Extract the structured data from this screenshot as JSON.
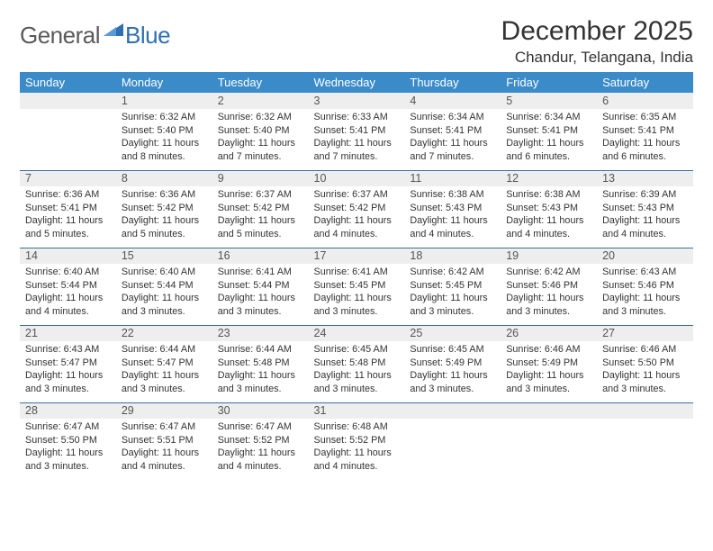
{
  "logo": {
    "part1": "General",
    "part2": "Blue"
  },
  "title": "December 2025",
  "location": "Chandur, Telangana, India",
  "colors": {
    "header_bg": "#3b8bc9",
    "header_text": "#ffffff",
    "daynum_bg": "#eeeeee",
    "row_divider": "#3b6fa0",
    "logo_gray": "#5a5a5a",
    "logo_blue": "#2f6fb3",
    "body_text": "#333333",
    "background": "#ffffff"
  },
  "typography": {
    "title_fontsize": 30,
    "location_fontsize": 17,
    "dayheader_fontsize": 13,
    "daynum_fontsize": 12.5,
    "cell_fontsize": 10.8
  },
  "day_headers": [
    "Sunday",
    "Monday",
    "Tuesday",
    "Wednesday",
    "Thursday",
    "Friday",
    "Saturday"
  ],
  "weeks": [
    [
      null,
      {
        "n": "1",
        "sr": "Sunrise: 6:32 AM",
        "ss": "Sunset: 5:40 PM",
        "dl": "Daylight: 11 hours and 8 minutes."
      },
      {
        "n": "2",
        "sr": "Sunrise: 6:32 AM",
        "ss": "Sunset: 5:40 PM",
        "dl": "Daylight: 11 hours and 7 minutes."
      },
      {
        "n": "3",
        "sr": "Sunrise: 6:33 AM",
        "ss": "Sunset: 5:41 PM",
        "dl": "Daylight: 11 hours and 7 minutes."
      },
      {
        "n": "4",
        "sr": "Sunrise: 6:34 AM",
        "ss": "Sunset: 5:41 PM",
        "dl": "Daylight: 11 hours and 7 minutes."
      },
      {
        "n": "5",
        "sr": "Sunrise: 6:34 AM",
        "ss": "Sunset: 5:41 PM",
        "dl": "Daylight: 11 hours and 6 minutes."
      },
      {
        "n": "6",
        "sr": "Sunrise: 6:35 AM",
        "ss": "Sunset: 5:41 PM",
        "dl": "Daylight: 11 hours and 6 minutes."
      }
    ],
    [
      {
        "n": "7",
        "sr": "Sunrise: 6:36 AM",
        "ss": "Sunset: 5:41 PM",
        "dl": "Daylight: 11 hours and 5 minutes."
      },
      {
        "n": "8",
        "sr": "Sunrise: 6:36 AM",
        "ss": "Sunset: 5:42 PM",
        "dl": "Daylight: 11 hours and 5 minutes."
      },
      {
        "n": "9",
        "sr": "Sunrise: 6:37 AM",
        "ss": "Sunset: 5:42 PM",
        "dl": "Daylight: 11 hours and 5 minutes."
      },
      {
        "n": "10",
        "sr": "Sunrise: 6:37 AM",
        "ss": "Sunset: 5:42 PM",
        "dl": "Daylight: 11 hours and 4 minutes."
      },
      {
        "n": "11",
        "sr": "Sunrise: 6:38 AM",
        "ss": "Sunset: 5:43 PM",
        "dl": "Daylight: 11 hours and 4 minutes."
      },
      {
        "n": "12",
        "sr": "Sunrise: 6:38 AM",
        "ss": "Sunset: 5:43 PM",
        "dl": "Daylight: 11 hours and 4 minutes."
      },
      {
        "n": "13",
        "sr": "Sunrise: 6:39 AM",
        "ss": "Sunset: 5:43 PM",
        "dl": "Daylight: 11 hours and 4 minutes."
      }
    ],
    [
      {
        "n": "14",
        "sr": "Sunrise: 6:40 AM",
        "ss": "Sunset: 5:44 PM",
        "dl": "Daylight: 11 hours and 4 minutes."
      },
      {
        "n": "15",
        "sr": "Sunrise: 6:40 AM",
        "ss": "Sunset: 5:44 PM",
        "dl": "Daylight: 11 hours and 3 minutes."
      },
      {
        "n": "16",
        "sr": "Sunrise: 6:41 AM",
        "ss": "Sunset: 5:44 PM",
        "dl": "Daylight: 11 hours and 3 minutes."
      },
      {
        "n": "17",
        "sr": "Sunrise: 6:41 AM",
        "ss": "Sunset: 5:45 PM",
        "dl": "Daylight: 11 hours and 3 minutes."
      },
      {
        "n": "18",
        "sr": "Sunrise: 6:42 AM",
        "ss": "Sunset: 5:45 PM",
        "dl": "Daylight: 11 hours and 3 minutes."
      },
      {
        "n": "19",
        "sr": "Sunrise: 6:42 AM",
        "ss": "Sunset: 5:46 PM",
        "dl": "Daylight: 11 hours and 3 minutes."
      },
      {
        "n": "20",
        "sr": "Sunrise: 6:43 AM",
        "ss": "Sunset: 5:46 PM",
        "dl": "Daylight: 11 hours and 3 minutes."
      }
    ],
    [
      {
        "n": "21",
        "sr": "Sunrise: 6:43 AM",
        "ss": "Sunset: 5:47 PM",
        "dl": "Daylight: 11 hours and 3 minutes."
      },
      {
        "n": "22",
        "sr": "Sunrise: 6:44 AM",
        "ss": "Sunset: 5:47 PM",
        "dl": "Daylight: 11 hours and 3 minutes."
      },
      {
        "n": "23",
        "sr": "Sunrise: 6:44 AM",
        "ss": "Sunset: 5:48 PM",
        "dl": "Daylight: 11 hours and 3 minutes."
      },
      {
        "n": "24",
        "sr": "Sunrise: 6:45 AM",
        "ss": "Sunset: 5:48 PM",
        "dl": "Daylight: 11 hours and 3 minutes."
      },
      {
        "n": "25",
        "sr": "Sunrise: 6:45 AM",
        "ss": "Sunset: 5:49 PM",
        "dl": "Daylight: 11 hours and 3 minutes."
      },
      {
        "n": "26",
        "sr": "Sunrise: 6:46 AM",
        "ss": "Sunset: 5:49 PM",
        "dl": "Daylight: 11 hours and 3 minutes."
      },
      {
        "n": "27",
        "sr": "Sunrise: 6:46 AM",
        "ss": "Sunset: 5:50 PM",
        "dl": "Daylight: 11 hours and 3 minutes."
      }
    ],
    [
      {
        "n": "28",
        "sr": "Sunrise: 6:47 AM",
        "ss": "Sunset: 5:50 PM",
        "dl": "Daylight: 11 hours and 3 minutes."
      },
      {
        "n": "29",
        "sr": "Sunrise: 6:47 AM",
        "ss": "Sunset: 5:51 PM",
        "dl": "Daylight: 11 hours and 4 minutes."
      },
      {
        "n": "30",
        "sr": "Sunrise: 6:47 AM",
        "ss": "Sunset: 5:52 PM",
        "dl": "Daylight: 11 hours and 4 minutes."
      },
      {
        "n": "31",
        "sr": "Sunrise: 6:48 AM",
        "ss": "Sunset: 5:52 PM",
        "dl": "Daylight: 11 hours and 4 minutes."
      },
      null,
      null,
      null
    ]
  ]
}
